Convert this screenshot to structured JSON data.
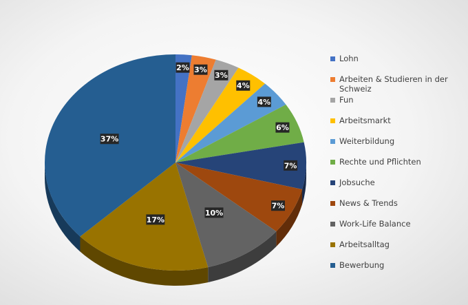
{
  "chart_data": {
    "type": "pie",
    "style": "3d",
    "legend_position": "right",
    "categories": [
      "Lohn",
      "Arbeiten & Studieren in der Schweiz",
      "Fun",
      "Arbeitsmarkt",
      "Weiterbildung",
      "Rechte und Pflichten",
      "Jobsuche",
      "News & Trends",
      "Work-Life Balance",
      "Arbeitsalltag",
      "Bewerbung"
    ],
    "values": [
      2,
      3,
      3,
      4,
      4,
      6,
      7,
      7,
      10,
      17,
      37
    ],
    "labels": [
      "2%",
      "3%",
      "3%",
      "4%",
      "4%",
      "6%",
      "7%",
      "7%",
      "10%",
      "17%",
      "37%"
    ],
    "colors": [
      "#4472C4",
      "#ED7D31",
      "#A5A5A5",
      "#FFC000",
      "#5B9BD5",
      "#70AD47",
      "#264478",
      "#9E480E",
      "#636363",
      "#997300",
      "#255E91"
    ]
  }
}
